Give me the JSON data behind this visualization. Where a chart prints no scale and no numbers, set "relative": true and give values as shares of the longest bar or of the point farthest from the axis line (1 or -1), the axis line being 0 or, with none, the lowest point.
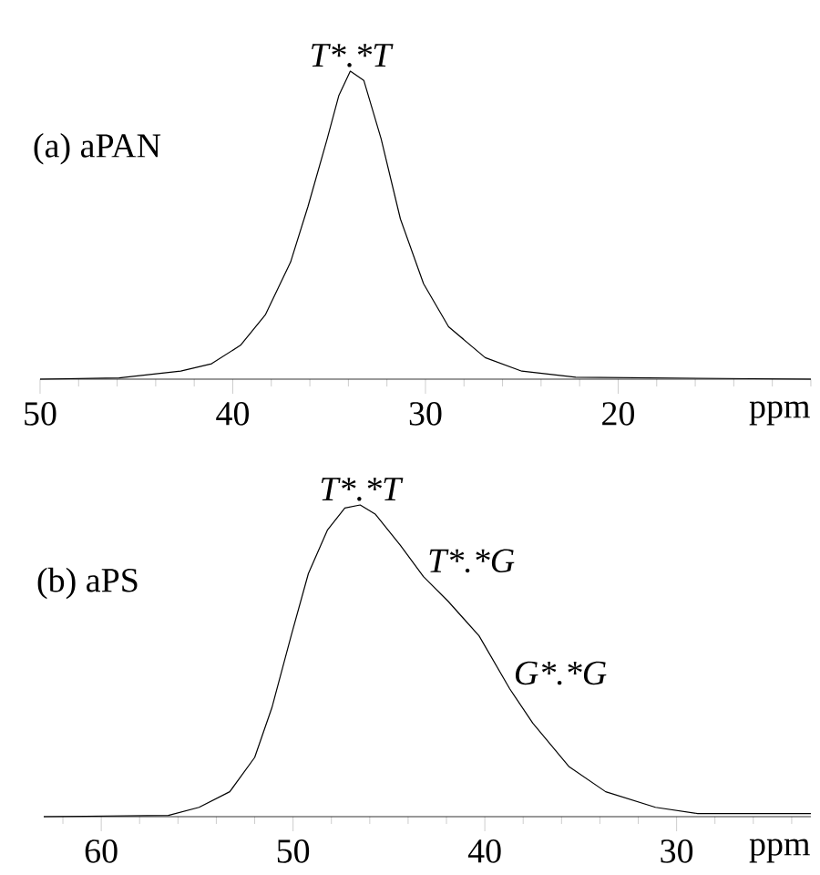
{
  "chart_data": [
    {
      "type": "line",
      "title": "(a) aPAN",
      "xlabel": "ppm",
      "relative": true,
      "xlim": [
        50,
        10
      ],
      "xticks": [
        50,
        {
          "value": 48,
          "label": null
        },
        {
          "value": 46,
          "label": null
        },
        {
          "value": 44,
          "label": null
        },
        {
          "value": 42,
          "label": null
        },
        40,
        {
          "value": 38,
          "label": null
        },
        {
          "value": 36,
          "label": null
        },
        {
          "value": 34,
          "label": null
        },
        {
          "value": 32,
          "label": null
        },
        30,
        {
          "value": 28,
          "label": null
        },
        {
          "value": 26,
          "label": null
        },
        {
          "value": 24,
          "label": null
        },
        {
          "value": 22,
          "label": null
        },
        20,
        {
          "value": 18,
          "label": null
        },
        {
          "value": 16,
          "label": null
        },
        {
          "value": 14,
          "label": null
        },
        {
          "value": 12,
          "label": null
        },
        {
          "value": 10,
          "label": null
        }
      ],
      "series": [
        {
          "color": "#000000",
          "x": [
            50,
            45.9,
            42.7,
            41.1,
            39.6,
            38.3,
            37.0,
            36.1,
            35.1,
            34.5,
            33.9,
            33.2,
            32.3,
            31.3,
            30.1,
            28.8,
            26.9,
            25.0,
            22.2,
            10
          ],
          "values": [
            0,
            0.004,
            0.026,
            0.05,
            0.11,
            0.21,
            0.38,
            0.56,
            0.78,
            0.92,
            1.0,
            0.97,
            0.78,
            0.52,
            0.31,
            0.17,
            0.07,
            0.026,
            0.006,
            0
          ]
        }
      ],
      "annotations": [
        {
          "text": "T*.*T",
          "x": 33.9,
          "y": 1.0
        }
      ]
    },
    {
      "type": "line",
      "title": "(b) aPS",
      "xlabel": "ppm",
      "relative": true,
      "xlim": [
        63,
        23
      ],
      "xticks": [
        {
          "value": 62,
          "label": null
        },
        60,
        {
          "value": 58,
          "label": null
        },
        {
          "value": 56,
          "label": null
        },
        {
          "value": 54,
          "label": null
        },
        {
          "value": 52,
          "label": null
        },
        50,
        {
          "value": 48,
          "label": null
        },
        {
          "value": 46,
          "label": null
        },
        {
          "value": 44,
          "label": null
        },
        {
          "value": 42,
          "label": null
        },
        40,
        {
          "value": 38,
          "label": null
        },
        {
          "value": 36,
          "label": null
        },
        {
          "value": 34,
          "label": null
        },
        {
          "value": 32,
          "label": null
        },
        30,
        {
          "value": 28,
          "label": null
        },
        {
          "value": 26,
          "label": null
        },
        {
          "value": 24,
          "label": null
        }
      ],
      "series": [
        {
          "color": "#000000",
          "x": [
            63,
            56.5,
            54.9,
            53.3,
            52.0,
            51.1,
            50.1,
            49.2,
            48.2,
            47.3,
            46.5,
            45.7,
            44.4,
            43.2,
            41.9,
            40.3,
            38.7,
            37.5,
            35.6,
            33.7,
            31.1,
            28.9,
            23
          ],
          "values": [
            0,
            0.004,
            0.03,
            0.08,
            0.19,
            0.35,
            0.58,
            0.78,
            0.92,
            0.99,
            1.0,
            0.97,
            0.87,
            0.77,
            0.69,
            0.58,
            0.41,
            0.3,
            0.16,
            0.08,
            0.03,
            0.01,
            0.01
          ]
        }
      ],
      "annotations": [
        {
          "text": "T*.*T",
          "x": 46.5,
          "y": 1.0
        },
        {
          "text": "T*.*G",
          "x": 43.2,
          "y": 0.77
        },
        {
          "text": "G*.*G",
          "x": 38.7,
          "y": 0.41
        }
      ]
    }
  ]
}
